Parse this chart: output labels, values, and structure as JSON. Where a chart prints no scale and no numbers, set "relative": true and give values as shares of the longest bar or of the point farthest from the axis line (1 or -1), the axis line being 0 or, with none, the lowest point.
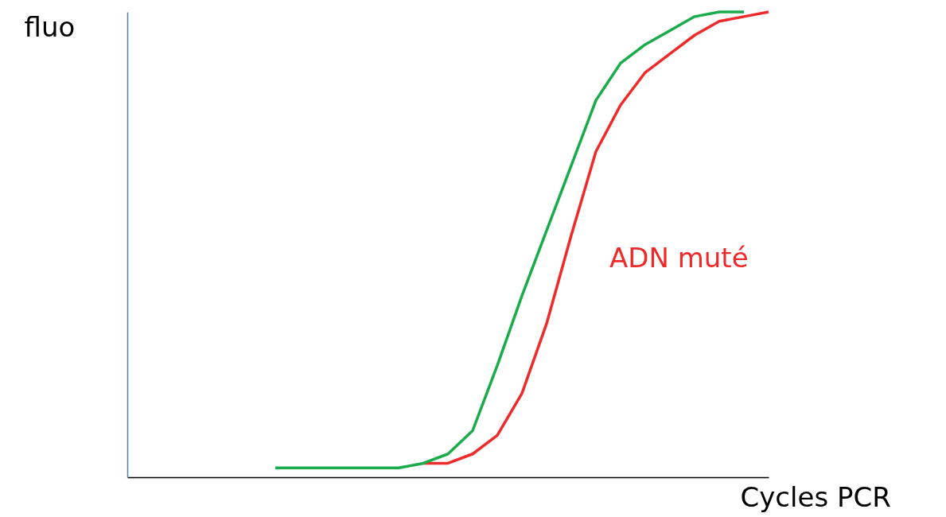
{
  "chart_data": {
    "type": "line",
    "relative": true,
    "xlabel": "Cycles PCR",
    "ylabel": "fluo",
    "tick_labels": false,
    "grid": false,
    "legend": false,
    "marker": "none",
    "line_style": "solid",
    "categories": [
      null,
      null,
      null,
      null,
      null,
      null,
      null,
      null,
      null,
      null,
      null,
      null,
      null,
      null,
      null,
      null,
      null,
      null,
      null,
      null,
      null,
      null,
      null,
      null,
      null,
      null,
      null
    ],
    "series": [
      {
        "color": "#1aab4b",
        "values": [
          null,
          null,
          null,
          null,
          null,
          null,
          0.02,
          0.02,
          0.02,
          0.02,
          0.02,
          0.02,
          0.03,
          0.05,
          0.1,
          0.24,
          0.39,
          0.53,
          0.67,
          0.81,
          0.89,
          0.93,
          0.96,
          0.99,
          1.0,
          1.0,
          null
        ]
      },
      {
        "name": "ADN muté",
        "color": "#ee2a2a",
        "values": [
          null,
          null,
          null,
          null,
          null,
          null,
          null,
          null,
          null,
          null,
          null,
          null,
          0.03,
          0.03,
          0.05,
          0.09,
          0.18,
          0.33,
          0.52,
          0.7,
          0.8,
          0.87,
          0.91,
          0.95,
          0.98,
          0.99,
          1.0
        ]
      }
    ]
  }
}
